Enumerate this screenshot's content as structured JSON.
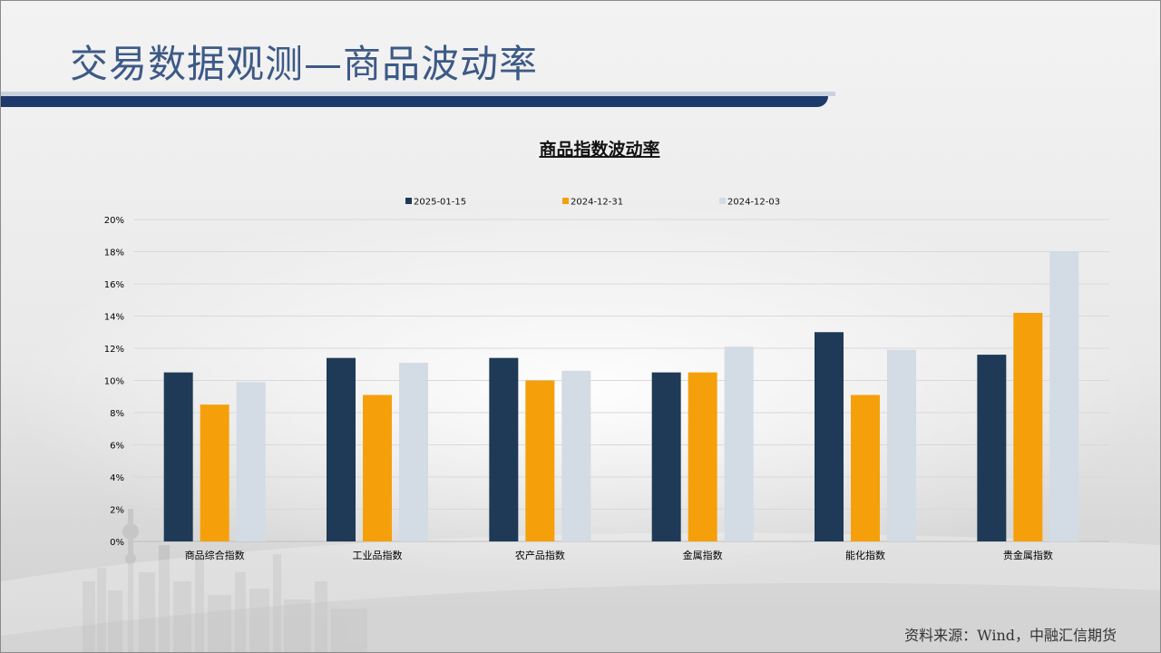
{
  "page": {
    "title": "交易数据观测—商品波动率",
    "source": "资料来源：Wind，中融汇信期货"
  },
  "colors": {
    "title": "#3d5a86",
    "title_bar": "#1e3a6b",
    "grid": "#d9d9d9",
    "axis_text": "#000000"
  },
  "chart_data": {
    "type": "bar",
    "title": "商品指数波动率",
    "categories": [
      "商品综合指数",
      "工业品指数",
      "农产品指数",
      "金属指数",
      "能化指数",
      "贵金属指数"
    ],
    "series": [
      {
        "name": "2025-01-15",
        "color": "#1f3a56",
        "values": [
          10.5,
          11.4,
          11.4,
          10.5,
          13.0,
          11.6
        ]
      },
      {
        "name": "2024-12-31",
        "color": "#f5a00a",
        "values": [
          8.5,
          9.1,
          10.0,
          10.5,
          9.1,
          14.2
        ]
      },
      {
        "name": "2024-12-03",
        "color": "#d3dbe4",
        "values": [
          9.9,
          11.1,
          10.6,
          12.1,
          11.9,
          18.0
        ]
      }
    ],
    "yticks": [
      "0%",
      "2%",
      "4%",
      "6%",
      "8%",
      "10%",
      "12%",
      "14%",
      "16%",
      "18%",
      "20%"
    ],
    "ylim": [
      0,
      20
    ],
    "ylabel": "",
    "xlabel": "",
    "grid": true,
    "legend_position": "top"
  }
}
